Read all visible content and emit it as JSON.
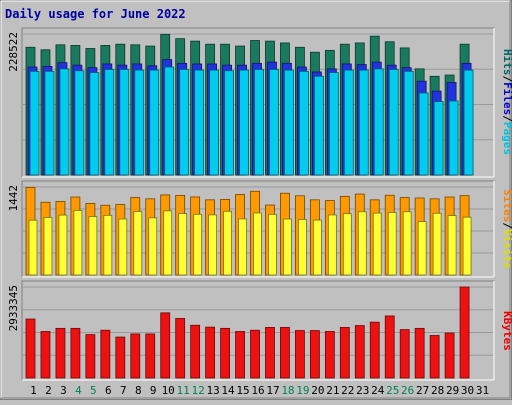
{
  "chart_data": {
    "type": "bar",
    "title": "Daily usage for June 2022",
    "categories": [
      "1",
      "2",
      "3",
      "4",
      "5",
      "6",
      "7",
      "8",
      "9",
      "10",
      "11",
      "12",
      "13",
      "14",
      "15",
      "16",
      "17",
      "18",
      "19",
      "20",
      "21",
      "22",
      "23",
      "24",
      "25",
      "26",
      "27",
      "28",
      "29",
      "30",
      "31"
    ],
    "weekend_days": [
      "4",
      "5",
      "11",
      "12",
      "18",
      "19",
      "25",
      "26"
    ],
    "panels": [
      {
        "id": "hits-files-pages",
        "max_label": "228522",
        "ylim": [
          0,
          228522
        ],
        "legend": [
          {
            "text": "Hits",
            "color": "#006666"
          },
          {
            "text": "/",
            "color": "#000000"
          },
          {
            "text": "Files",
            "color": "#0000cc"
          },
          {
            "text": "/",
            "color": "#000000"
          },
          {
            "text": "Pages",
            "color": "#00c0e0"
          }
        ],
        "series": [
          {
            "name": "Hits",
            "color": "#1a7a5e",
            "values": [
              207000,
              203000,
              211000,
              210000,
              205000,
              210000,
              212000,
              211000,
              209000,
              228000,
              221000,
              217000,
              212000,
              212000,
              209000,
              218000,
              217000,
              214000,
              207000,
              199000,
              202000,
              212000,
              214000,
              225000,
              216000,
              206000,
              172000,
              160000,
              162000,
              212000,
              null
            ]
          },
          {
            "name": "Files",
            "color": "#2233dd",
            "values": [
              175000,
              176000,
              182000,
              178000,
              174000,
              180000,
              178000,
              180000,
              177000,
              187000,
              181000,
              180000,
              180000,
              178000,
              178000,
              181000,
              183000,
              181000,
              175000,
              167000,
              172000,
              180000,
              179000,
              183000,
              178000,
              174000,
              152000,
              136000,
              150000,
              181000,
              null
            ]
          },
          {
            "name": "Pages",
            "color": "#00ccee",
            "values": [
              168000,
              168000,
              172000,
              169000,
              166000,
              171000,
              171000,
              170000,
              170000,
              175000,
              171000,
              170000,
              170000,
              169000,
              170000,
              171000,
              171000,
              170000,
              168000,
              160000,
              166000,
              170000,
              170000,
              172000,
              171000,
              168000,
              133000,
              119000,
              120000,
              170000,
              null
            ]
          }
        ]
      },
      {
        "id": "visits-sites",
        "max_label": "1442",
        "ylim": [
          0,
          1442
        ],
        "legend": [
          {
            "text": "Sites",
            "color": "#ff8000"
          },
          {
            "text": "/",
            "color": "#000000"
          },
          {
            "text": "Visits",
            "color": "#dddd00"
          }
        ],
        "series": [
          {
            "name": "Visits",
            "color": "#ff9900",
            "values": [
              1435,
              1192,
              1205,
              1278,
              1173,
              1143,
              1155,
              1269,
              1248,
              1312,
              1304,
              1279,
              1232,
              1239,
              1320,
              1372,
              1146,
              1340,
              1298,
              1232,
              1220,
              1289,
              1326,
              1232,
              1307,
              1269,
              1262,
              1248,
              1278,
              1300,
              null
            ]
          },
          {
            "name": "Sites",
            "color": "#ffff33",
            "values": [
              898,
              942,
              981,
              1058,
              956,
              977,
              917,
              1040,
              936,
              1051,
              1007,
              994,
              985,
              1043,
              919,
              1016,
              994,
              917,
              910,
              900,
              984,
              1005,
              1036,
              1014,
              1025,
              1036,
              875,
              1011,
              974,
              948,
              null
            ]
          }
        ]
      },
      {
        "id": "kbytes",
        "max_label": "2933345",
        "ylim": [
          0,
          2933345
        ],
        "legend": [
          {
            "text": "KBytes",
            "color": "#ee0000"
          }
        ],
        "series": [
          {
            "name": "KBytes",
            "color": "#ee1111",
            "values": [
              1900000,
              1500000,
              1600000,
              1600000,
              1400000,
              1540000,
              1320000,
              1420000,
              1420000,
              2100000,
              1920000,
              1700000,
              1640000,
              1600000,
              1500000,
              1540000,
              1630000,
              1630000,
              1530000,
              1530000,
              1500000,
              1630000,
              1690000,
              1800000,
              2000000,
              1560000,
              1600000,
              1370000,
              1450000,
              2933345,
              null
            ]
          }
        ]
      }
    ]
  }
}
